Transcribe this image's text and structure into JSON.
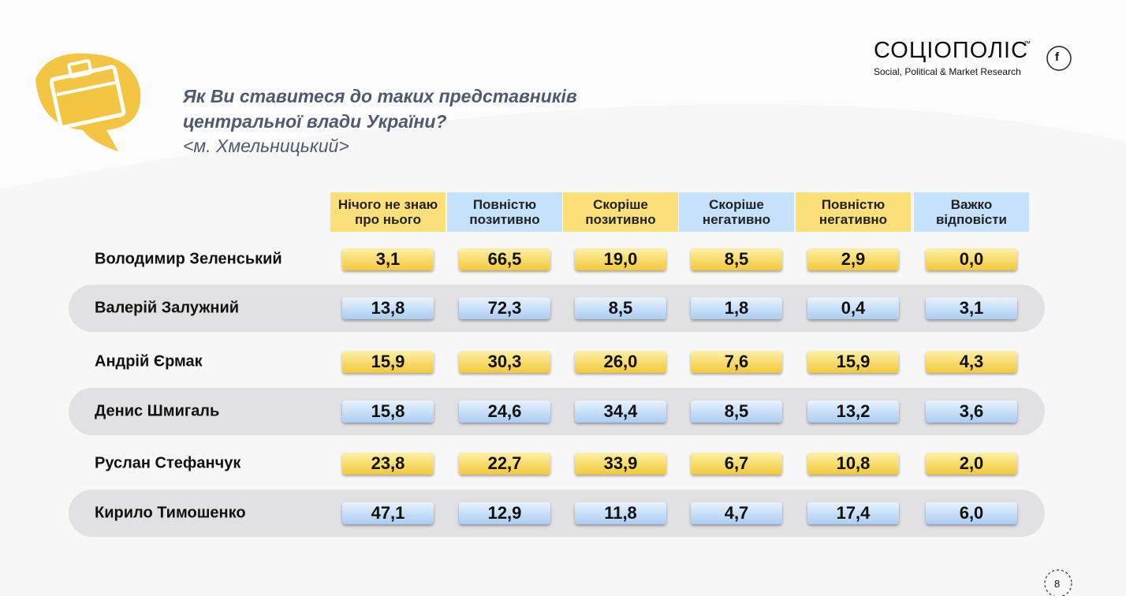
{
  "header": {
    "title_lines": [
      "Як Ви ставитеся до таких представників",
      "центральної влади України?"
    ],
    "subtitle": "<м. Хмельницький>",
    "logo": "СОЦІОПОЛІС",
    "logo_mark": "™",
    "tagline": "Social, Political & Market Research",
    "social_icon": "f"
  },
  "table": {
    "columns": [
      [
        "Нічого не знаю",
        "про нього"
      ],
      [
        "Повністю",
        "позитивно"
      ],
      [
        "Скоріше",
        "позитивно"
      ],
      [
        "Скоріше",
        "негативно"
      ],
      [
        "Повністю",
        "негативно"
      ],
      [
        "Важко",
        "відповісти"
      ]
    ],
    "rows": [
      {
        "name": "Володимир Зеленський",
        "values": [
          "3,1",
          "66,5",
          "19,0",
          "8,5",
          "2,9",
          "0,0"
        ]
      },
      {
        "name": "Валерій Залужний",
        "values": [
          "13,8",
          "72,3",
          "8,5",
          "1,8",
          "0,4",
          "3,1"
        ]
      },
      {
        "name": "Андрій Єрмак",
        "values": [
          "15,9",
          "30,3",
          "26,0",
          "7,6",
          "15,9",
          "4,3"
        ]
      },
      {
        "name": "Денис Шмигаль",
        "values": [
          "15,8",
          "24,6",
          "34,4",
          "8,5",
          "13,2",
          "3,6"
        ]
      },
      {
        "name": "Руслан Стефанчук",
        "values": [
          "23,8",
          "22,7",
          "33,9",
          "6,7",
          "10,8",
          "2,0"
        ]
      },
      {
        "name": "Кирило Тимошенко",
        "values": [
          "47,1",
          "12,9",
          "11,8",
          "4,7",
          "17,4",
          "6,0"
        ]
      }
    ]
  },
  "footer": {
    "page_number": "8"
  }
}
